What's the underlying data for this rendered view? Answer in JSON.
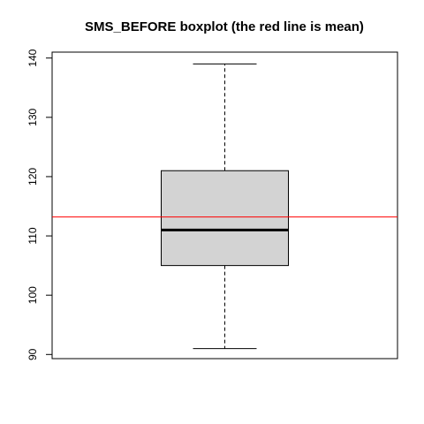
{
  "chart_data": {
    "type": "boxplot",
    "title": "SMS_BEFORE boxplot (the red line is mean)",
    "xlabel": "",
    "ylabel": "",
    "ylim": [
      89.3,
      141.0
    ],
    "y_ticks": [
      90,
      100,
      110,
      120,
      130,
      140
    ],
    "grid": false,
    "box": {
      "min": 91,
      "q1": 105,
      "median": 111,
      "q3": 121,
      "max": 139
    },
    "mean": 113.2,
    "colors": {
      "box_fill": "#d3d3d3",
      "mean_line": "#ff0000",
      "axis": "#000000"
    }
  }
}
